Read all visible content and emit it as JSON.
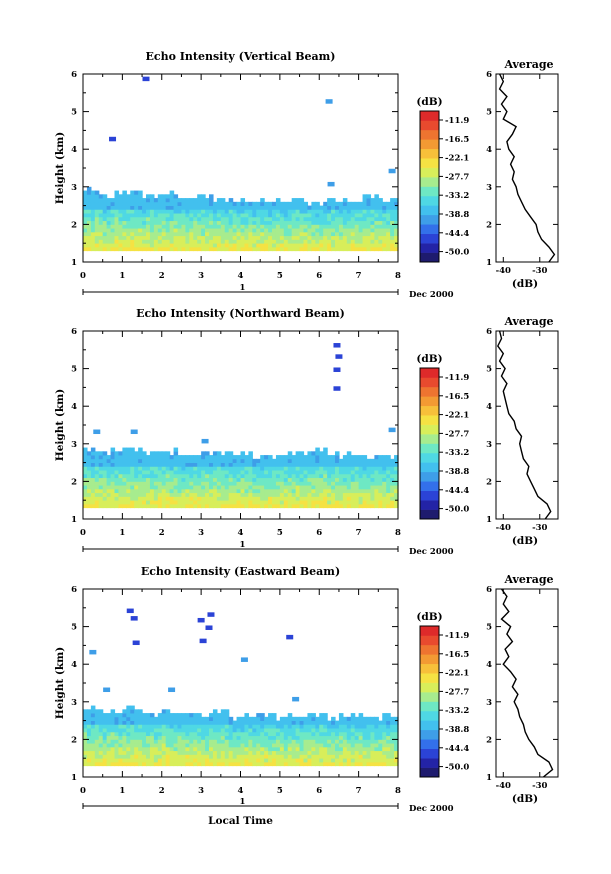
{
  "colorbar": {
    "unit_label": "(dB)",
    "labels": [
      "-11.9",
      "-16.5",
      "-22.1",
      "-27.7",
      "-33.2",
      "-38.8",
      "-44.4",
      "-50.0"
    ],
    "colors": [
      "#1e1b6e",
      "#2323a6",
      "#2b43d6",
      "#3370ea",
      "#3e9ee8",
      "#42c0ee",
      "#4fd8e4",
      "#6ee8c4",
      "#a7ec8e",
      "#d8ee5a",
      "#f5e243",
      "#f7c03a",
      "#f39a33",
      "#ee7430",
      "#e84a2e",
      "#de2a2a"
    ]
  },
  "shared": {
    "time_ticks": [
      "0",
      "1",
      "2",
      "3",
      "4",
      "5",
      "6",
      "7",
      "8"
    ],
    "date_label": "Dec 2000",
    "day_label": "1",
    "xlabel": "Local Time"
  },
  "chart_data": [
    {
      "type": "heatmap",
      "title": "Echo Intensity (Vertical Beam)",
      "ylabel": "Height (km)",
      "xlim": [
        0,
        8
      ],
      "ylim": [
        1,
        6
      ],
      "yticks": [
        "1",
        "2",
        "3",
        "4",
        "5",
        "6"
      ],
      "echo_top_km": [
        2.85,
        2.75,
        2.85,
        2.7,
        2.8,
        2.65,
        2.7,
        2.6,
        2.6,
        2.55,
        2.55,
        2.6,
        2.55,
        2.6,
        2.55,
        2.7,
        2.6
      ],
      "isolated_echoes": [
        {
          "t": 1.6,
          "h": 5.85,
          "db": -44.4
        },
        {
          "t": 0.75,
          "h": 4.25,
          "db": -44.4
        },
        {
          "t": 6.25,
          "h": 5.25,
          "db": -38.8
        },
        {
          "t": 6.3,
          "h": 3.05,
          "db": -38.8
        },
        {
          "t": 7.85,
          "h": 3.4,
          "db": -38.8
        }
      ],
      "average": {
        "title": "Average",
        "xlabel": "(dB)",
        "xticks": [
          "-40",
          "-30"
        ],
        "xlim": [
          -42,
          -25
        ],
        "yticks": [
          "1",
          "2",
          "3",
          "4",
          "5",
          "6"
        ],
        "height_km": [
          1.0,
          1.2,
          1.4,
          1.6,
          1.8,
          2.0,
          2.2,
          2.4,
          2.6,
          2.8,
          3.0,
          3.2,
          3.4,
          3.6,
          3.8,
          4.0,
          4.2,
          4.4,
          4.6,
          4.8,
          5.0,
          5.2,
          5.4,
          5.6,
          5.8,
          6.0
        ],
        "db": [
          -27.5,
          -26.0,
          -27.5,
          -29.5,
          -30.5,
          -31.0,
          -32.5,
          -34.0,
          -35.0,
          -36.0,
          -36.5,
          -37.5,
          -37.0,
          -38.0,
          -37.0,
          -38.5,
          -39.0,
          -37.5,
          -36.5,
          -40.0,
          -39.0,
          -40.5,
          -39.0,
          -41.0,
          -40.0,
          -41.0
        ]
      }
    },
    {
      "type": "heatmap",
      "title": "Echo Intensity (Northward Beam)",
      "ylabel": "Height (km)",
      "xlim": [
        0,
        8
      ],
      "ylim": [
        1,
        6
      ],
      "yticks": [
        "1",
        "2",
        "3",
        "4",
        "5",
        "6"
      ],
      "echo_top_km": [
        2.8,
        2.75,
        2.8,
        2.7,
        2.75,
        2.65,
        2.7,
        2.7,
        2.65,
        2.6,
        2.65,
        2.7,
        2.75,
        2.65,
        2.7,
        2.6,
        2.65
      ],
      "isolated_echoes": [
        {
          "t": 0.35,
          "h": 3.3,
          "db": -38.8
        },
        {
          "t": 1.3,
          "h": 3.3,
          "db": -38.8
        },
        {
          "t": 3.1,
          "h": 3.05,
          "db": -38.8
        },
        {
          "t": 6.45,
          "h": 5.6,
          "db": -44.4
        },
        {
          "t": 6.5,
          "h": 5.3,
          "db": -44.4
        },
        {
          "t": 6.45,
          "h": 4.95,
          "db": -44.4
        },
        {
          "t": 6.45,
          "h": 4.45,
          "db": -44.4
        },
        {
          "t": 7.85,
          "h": 3.35,
          "db": -38.8
        }
      ],
      "average": {
        "title": "Average",
        "xlabel": "(dB)",
        "xticks": [
          "-40",
          "-30"
        ],
        "xlim": [
          -42,
          -25
        ],
        "yticks": [
          "1",
          "2",
          "3",
          "4",
          "5",
          "6"
        ],
        "height_km": [
          1.0,
          1.2,
          1.4,
          1.6,
          1.8,
          2.0,
          2.2,
          2.4,
          2.6,
          2.8,
          3.0,
          3.2,
          3.4,
          3.6,
          3.8,
          4.0,
          4.2,
          4.4,
          4.6,
          4.8,
          5.0,
          5.2,
          5.4,
          5.6,
          5.8,
          6.0
        ],
        "db": [
          -28.5,
          -27.0,
          -28.0,
          -30.5,
          -31.5,
          -32.5,
          -33.5,
          -33.0,
          -34.5,
          -35.0,
          -35.5,
          -35.0,
          -36.5,
          -37.0,
          -38.5,
          -39.0,
          -39.5,
          -40.0,
          -39.0,
          -40.5,
          -39.5,
          -41.0,
          -40.0,
          -41.5,
          -40.5,
          -41.0
        ]
      }
    },
    {
      "type": "heatmap",
      "title": "Echo Intensity (Eastward Beam)",
      "ylabel": "Height (km)",
      "xlim": [
        0,
        8
      ],
      "ylim": [
        1,
        6
      ],
      "yticks": [
        "1",
        "2",
        "3",
        "4",
        "5",
        "6"
      ],
      "echo_top_km": [
        2.75,
        2.7,
        2.8,
        2.65,
        2.7,
        2.6,
        2.6,
        2.65,
        2.55,
        2.6,
        2.55,
        2.6,
        2.6,
        2.55,
        2.6,
        2.55,
        2.6
      ],
      "isolated_echoes": [
        {
          "t": 0.25,
          "h": 4.3,
          "db": -38.8
        },
        {
          "t": 0.6,
          "h": 3.3,
          "db": -38.8
        },
        {
          "t": 1.2,
          "h": 5.4,
          "db": -44.4
        },
        {
          "t": 1.3,
          "h": 5.2,
          "db": -44.4
        },
        {
          "t": 1.35,
          "h": 4.55,
          "db": -44.4
        },
        {
          "t": 2.25,
          "h": 3.3,
          "db": -38.8
        },
        {
          "t": 3.0,
          "h": 5.15,
          "db": -44.4
        },
        {
          "t": 3.25,
          "h": 5.3,
          "db": -44.4
        },
        {
          "t": 3.2,
          "h": 4.95,
          "db": -44.4
        },
        {
          "t": 3.05,
          "h": 4.6,
          "db": -44.4
        },
        {
          "t": 4.1,
          "h": 4.1,
          "db": -38.8
        },
        {
          "t": 5.25,
          "h": 4.7,
          "db": -44.4
        },
        {
          "t": 5.4,
          "h": 3.05,
          "db": -38.8
        }
      ],
      "average": {
        "title": "Average",
        "xlabel": "(dB)",
        "xticks": [
          "-40",
          "-30"
        ],
        "xlim": [
          -42,
          -25
        ],
        "yticks": [
          "1",
          "2",
          "3",
          "4",
          "5",
          "6"
        ],
        "height_km": [
          1.0,
          1.2,
          1.4,
          1.6,
          1.8,
          2.0,
          2.2,
          2.4,
          2.6,
          2.8,
          3.0,
          3.2,
          3.4,
          3.6,
          3.8,
          4.0,
          4.2,
          4.4,
          4.6,
          4.8,
          5.0,
          5.2,
          5.4,
          5.6,
          5.8,
          6.0
        ],
        "db": [
          -29.0,
          -26.5,
          -27.5,
          -30.5,
          -31.5,
          -33.0,
          -34.0,
          -34.5,
          -35.5,
          -36.0,
          -37.0,
          -36.0,
          -37.5,
          -36.5,
          -38.0,
          -40.0,
          -38.5,
          -39.5,
          -37.5,
          -39.0,
          -38.0,
          -40.5,
          -38.5,
          -40.0,
          -39.0,
          -40.5
        ]
      }
    }
  ]
}
